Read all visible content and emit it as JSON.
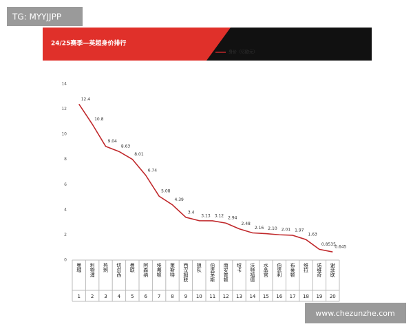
{
  "watermark_top": "TG: MYYJJPP",
  "watermark_bottom": "www.chezunzhe.com",
  "chart_data": {
    "type": "line",
    "title": "24/25赛季—英超身价排行",
    "categories": [
      "曼城",
      "利物浦",
      "热刺",
      "切尔西",
      "曼联",
      "阿森纳",
      "埃弗顿",
      "莱斯特",
      "西汉姆联",
      "狼队",
      "伯恩茅斯",
      "南安普顿",
      "纽卡",
      "沃特福德",
      "水晶宫",
      "伯恩利",
      "布莱顿",
      "维拉",
      "诺维奇",
      "谢菲联"
    ],
    "ranks": [
      1,
      2,
      3,
      4,
      5,
      6,
      7,
      8,
      9,
      10,
      11,
      12,
      13,
      14,
      15,
      16,
      17,
      18,
      19,
      20
    ],
    "series": [
      {
        "name": "身价（亿欧元）",
        "color": "#c0282b",
        "values": [
          12.4,
          10.8,
          9.04,
          8.63,
          8.01,
          6.74,
          5.08,
          4.39,
          3.4,
          3.13,
          3.12,
          2.94,
          2.48,
          2.16,
          2.1,
          2.01,
          1.97,
          1.63,
          0.8535,
          0.645
        ],
        "value_labels": [
          "12.4",
          "10.8",
          "9.04",
          "8.63",
          "8.01",
          "6.74",
          "5.08",
          "4.39",
          "3.4",
          "3.13",
          "3.12",
          "2.94",
          "2.48",
          "2.16",
          "2.10",
          "2.01",
          "1.97",
          "1.63",
          "0.8535",
          "0.645"
        ]
      }
    ],
    "ylim": [
      0,
      14
    ],
    "yticks": [
      0,
      2,
      4,
      6,
      8,
      10,
      12,
      14
    ],
    "grid": false
  }
}
